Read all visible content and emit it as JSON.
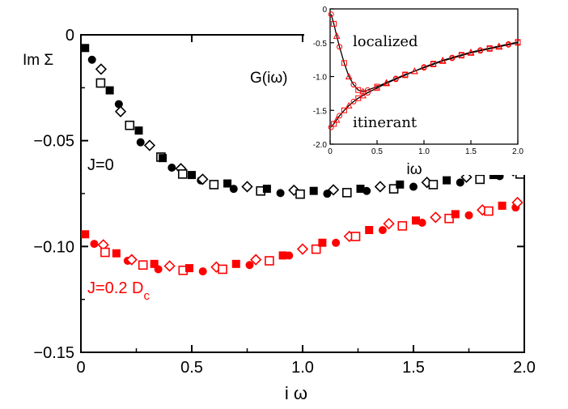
{
  "chart_data": [
    {
      "type": "scatter",
      "xlabel": "i ω",
      "ylabel": "Im Σ",
      "xlim": [
        0,
        2.0
      ],
      "ylim": [
        -0.15,
        0
      ],
      "xticks": [
        "0",
        "0.5",
        "1.0",
        "1.5",
        "2.0"
      ],
      "yticks": [
        "0",
        "−0.05",
        "−0.10",
        "−0.15"
      ],
      "grid": false,
      "annotations": {
        "j0": "J=0",
        "j02": "J=0.2 D",
        "j02_sub": "c"
      },
      "series": [
        {
          "name": "J=0",
          "color": "#000000",
          "x": [
            0.03,
            0.05,
            0.08,
            0.1,
            0.13,
            0.16,
            0.19,
            0.22,
            0.25,
            0.28,
            0.31,
            0.35,
            0.38,
            0.41,
            0.44,
            0.47,
            0.5,
            0.53,
            0.56,
            0.6,
            0.65,
            0.7,
            0.75,
            0.8,
            0.85,
            0.9,
            0.95,
            1.0,
            1.05,
            1.1,
            1.15,
            1.2,
            1.25,
            1.3,
            1.35,
            1.4,
            1.45,
            1.5,
            1.55,
            1.6,
            1.65,
            1.7,
            1.75,
            1.8,
            1.85,
            1.9,
            1.95,
            1.97
          ],
          "y": [
            -0.007,
            -0.011,
            -0.017,
            -0.022,
            -0.027,
            -0.032,
            -0.037,
            -0.042,
            -0.046,
            -0.05,
            -0.053,
            -0.057,
            -0.059,
            -0.062,
            -0.064,
            -0.065,
            -0.067,
            -0.068,
            -0.069,
            -0.07,
            -0.071,
            -0.072,
            -0.0725,
            -0.073,
            -0.0735,
            -0.074,
            -0.0742,
            -0.0745,
            -0.0745,
            -0.0743,
            -0.074,
            -0.0738,
            -0.0735,
            -0.073,
            -0.0725,
            -0.072,
            -0.0715,
            -0.071,
            -0.0705,
            -0.07,
            -0.0695,
            -0.069,
            -0.068,
            -0.0675,
            -0.067,
            -0.066,
            -0.065,
            -0.065
          ]
        },
        {
          "name": "J=0.2 Dc",
          "color": "#ff0000",
          "x": [
            0.03,
            0.06,
            0.09,
            0.12,
            0.16,
            0.2,
            0.24,
            0.28,
            0.32,
            0.36,
            0.4,
            0.45,
            0.5,
            0.55,
            0.6,
            0.65,
            0.7,
            0.75,
            0.8,
            0.85,
            0.9,
            0.95,
            1.0,
            1.05,
            1.1,
            1.15,
            1.2,
            1.25,
            1.3,
            1.35,
            1.4,
            1.45,
            1.5,
            1.55,
            1.6,
            1.65,
            1.7,
            1.75,
            1.8,
            1.85,
            1.9,
            1.95,
            1.98
          ],
          "y": [
            -0.095,
            -0.098,
            -0.1,
            -0.102,
            -0.104,
            -0.106,
            -0.107,
            -0.108,
            -0.109,
            -0.11,
            -0.11,
            -0.1105,
            -0.111,
            -0.111,
            -0.1105,
            -0.11,
            -0.109,
            -0.108,
            -0.107,
            -0.106,
            -0.105,
            -0.1035,
            -0.102,
            -0.1005,
            -0.099,
            -0.0975,
            -0.096,
            -0.0945,
            -0.093,
            -0.0915,
            -0.09,
            -0.0895,
            -0.0885,
            -0.088,
            -0.087,
            -0.086,
            -0.0855,
            -0.0845,
            -0.0835,
            -0.0825,
            -0.0815,
            -0.0808,
            -0.08
          ]
        }
      ]
    },
    {
      "type": "line",
      "title": "G(iω)",
      "xlabel": "iω",
      "xlim": [
        0,
        2.0
      ],
      "ylim": [
        -2.0,
        0
      ],
      "xticks": [
        "0",
        "0.5",
        "1.0",
        "1.5",
        "2.0"
      ],
      "yticks": [
        "0",
        "-0.5",
        "-1.0",
        "-1.5",
        "-2.0"
      ],
      "annotations": {
        "localized": "localized",
        "itinerant": "itinerant"
      },
      "series": [
        {
          "name": "localized",
          "x": [
            0.01,
            0.04,
            0.07,
            0.1,
            0.15,
            0.2,
            0.25,
            0.3,
            0.35,
            0.4,
            0.5,
            0.6,
            0.7,
            0.8,
            0.9,
            1.0,
            1.1,
            1.2,
            1.3,
            1.4,
            1.5,
            1.6,
            1.7,
            1.8,
            1.9,
            2.0
          ],
          "y": [
            -0.08,
            -0.22,
            -0.4,
            -0.56,
            -0.8,
            -1.0,
            -1.12,
            -1.2,
            -1.22,
            -1.2,
            -1.15,
            -1.09,
            -1.03,
            -0.97,
            -0.92,
            -0.86,
            -0.81,
            -0.76,
            -0.72,
            -0.68,
            -0.64,
            -0.61,
            -0.58,
            -0.55,
            -0.52,
            -0.49
          ]
        },
        {
          "name": "itinerant",
          "x": [
            0.01,
            0.04,
            0.07,
            0.1,
            0.15,
            0.2,
            0.25,
            0.3,
            0.35,
            0.4,
            0.5,
            0.6,
            0.7,
            0.8,
            0.9,
            1.0,
            1.1,
            1.2,
            1.3,
            1.4,
            1.5,
            1.6,
            1.7,
            1.8,
            1.9,
            2.0
          ],
          "y": [
            -1.75,
            -1.7,
            -1.64,
            -1.58,
            -1.5,
            -1.43,
            -1.37,
            -1.32,
            -1.28,
            -1.24,
            -1.17,
            -1.1,
            -1.04,
            -0.98,
            -0.92,
            -0.87,
            -0.82,
            -0.77,
            -0.73,
            -0.69,
            -0.65,
            -0.62,
            -0.59,
            -0.56,
            -0.53,
            -0.5
          ]
        }
      ]
    }
  ]
}
